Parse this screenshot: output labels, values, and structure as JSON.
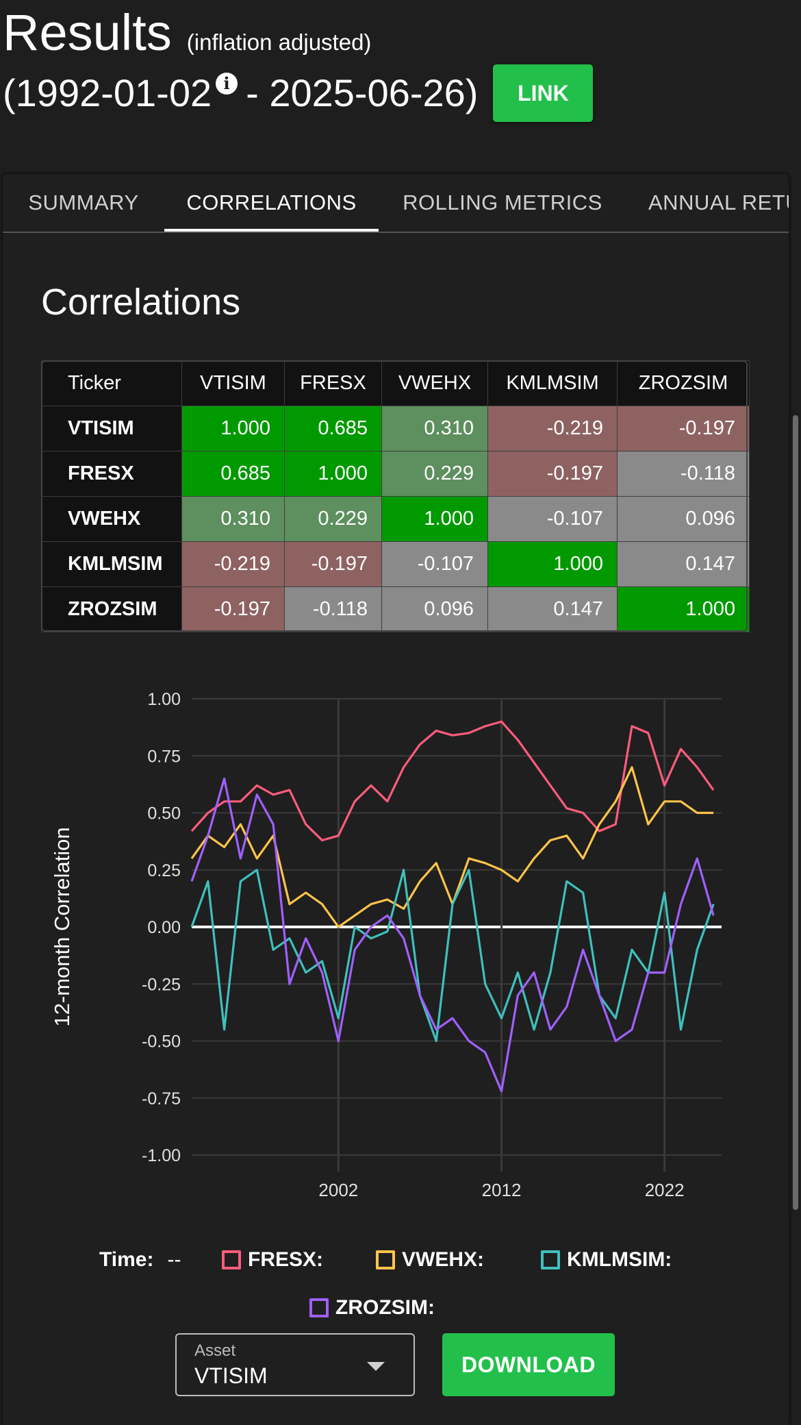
{
  "header": {
    "title": "Results",
    "subtitle": "(inflation adjusted)",
    "date_open": "(1992-01-02",
    "date_close": "- 2025-06-26)",
    "info_glyph": "i",
    "link_label": "LINK"
  },
  "tabs": [
    {
      "label": "SUMMARY",
      "active": false
    },
    {
      "label": "CORRELATIONS",
      "active": true
    },
    {
      "label": "ROLLING METRICS",
      "active": false
    },
    {
      "label": "ANNUAL RETU",
      "active": false
    }
  ],
  "section_title": "Correlations",
  "matrix": {
    "header": [
      "Ticker",
      "VTISIM",
      "FRESX",
      "VWEHX",
      "KMLMSIM",
      "ZROZSIM"
    ],
    "rows": [
      {
        "ticker": "VTISIM",
        "values": [
          "1.000",
          "0.685",
          "0.310",
          "-0.219",
          "-0.197"
        ]
      },
      {
        "ticker": "FRESX",
        "values": [
          "0.685",
          "1.000",
          "0.229",
          "-0.197",
          "-0.118"
        ]
      },
      {
        "ticker": "VWEHX",
        "values": [
          "0.310",
          "0.229",
          "1.000",
          "-0.107",
          "0.096"
        ]
      },
      {
        "ticker": "KMLMSIM",
        "values": [
          "-0.219",
          "-0.197",
          "-0.107",
          "1.000",
          "0.147"
        ]
      },
      {
        "ticker": "ZROZSIM",
        "values": [
          "-0.197",
          "-0.118",
          "0.096",
          "0.147",
          "1.000"
        ]
      }
    ],
    "colors": {
      "strong_positive": "#009a00",
      "positive": "#5e8f5e",
      "neutral": "#8a8a8a",
      "negative": "#8f6262"
    }
  },
  "chart_data": {
    "type": "line",
    "title": "",
    "xlabel": "",
    "ylabel": "12-month Correlation",
    "xlim": [
      1993,
      2025.5
    ],
    "ylim": [
      -1,
      1
    ],
    "x_ticks": [
      2002,
      2012,
      2022
    ],
    "y_ticks": [
      "1.00",
      "0.75",
      "0.50",
      "0.25",
      "0.00",
      "-0.25",
      "-0.50",
      "-0.75",
      "-1.00"
    ],
    "grid": true,
    "legend_position": "bottom",
    "series": [
      {
        "name": "FRESX",
        "color": "#ff5c7c",
        "x": [
          1993,
          1994,
          1995,
          1996,
          1997,
          1998,
          1999,
          2000,
          2001,
          2002,
          2003,
          2004,
          2005,
          2006,
          2007,
          2008,
          2009,
          2010,
          2011,
          2012,
          2013,
          2014,
          2015,
          2016,
          2017,
          2018,
          2019,
          2020,
          2021,
          2022,
          2023,
          2024,
          2025
        ],
        "y": [
          0.42,
          0.5,
          0.55,
          0.55,
          0.62,
          0.58,
          0.6,
          0.45,
          0.38,
          0.4,
          0.55,
          0.62,
          0.55,
          0.7,
          0.8,
          0.86,
          0.84,
          0.85,
          0.88,
          0.9,
          0.82,
          0.72,
          0.62,
          0.52,
          0.5,
          0.42,
          0.45,
          0.88,
          0.85,
          0.62,
          0.78,
          0.7,
          0.6
        ]
      },
      {
        "name": "VWEHX",
        "color": "#ffc44a",
        "x": [
          1993,
          1994,
          1995,
          1996,
          1997,
          1998,
          1999,
          2000,
          2001,
          2002,
          2003,
          2004,
          2005,
          2006,
          2007,
          2008,
          2009,
          2010,
          2011,
          2012,
          2013,
          2014,
          2015,
          2016,
          2017,
          2018,
          2019,
          2020,
          2021,
          2022,
          2023,
          2024,
          2025
        ],
        "y": [
          0.3,
          0.4,
          0.35,
          0.45,
          0.3,
          0.4,
          0.1,
          0.15,
          0.1,
          0.0,
          0.05,
          0.1,
          0.12,
          0.08,
          0.2,
          0.28,
          0.1,
          0.3,
          0.28,
          0.25,
          0.2,
          0.3,
          0.38,
          0.4,
          0.3,
          0.45,
          0.55,
          0.7,
          0.45,
          0.55,
          0.55,
          0.5,
          0.5
        ]
      },
      {
        "name": "KMLMSIM",
        "color": "#3fc0bc",
        "x": [
          1993,
          1994,
          1995,
          1996,
          1997,
          1998,
          1999,
          2000,
          2001,
          2002,
          2003,
          2004,
          2005,
          2006,
          2007,
          2008,
          2009,
          2010,
          2011,
          2012,
          2013,
          2014,
          2015,
          2016,
          2017,
          2018,
          2019,
          2020,
          2021,
          2022,
          2023,
          2024,
          2025
        ],
        "y": [
          0.0,
          0.2,
          -0.45,
          0.2,
          0.25,
          -0.1,
          -0.05,
          -0.2,
          -0.15,
          -0.4,
          0.0,
          -0.05,
          -0.02,
          0.25,
          -0.3,
          -0.5,
          0.1,
          0.25,
          -0.25,
          -0.4,
          -0.2,
          -0.45,
          -0.2,
          0.2,
          0.15,
          -0.3,
          -0.4,
          -0.1,
          -0.2,
          0.15,
          -0.45,
          -0.1,
          0.1
        ]
      },
      {
        "name": "ZROZSIM",
        "color": "#a060ff",
        "x": [
          1993,
          1994,
          1995,
          1996,
          1997,
          1998,
          1999,
          2000,
          2001,
          2002,
          2003,
          2004,
          2005,
          2006,
          2007,
          2008,
          2009,
          2010,
          2011,
          2012,
          2013,
          2014,
          2015,
          2016,
          2017,
          2018,
          2019,
          2020,
          2021,
          2022,
          2023,
          2024,
          2025
        ],
        "y": [
          0.2,
          0.4,
          0.65,
          0.3,
          0.58,
          0.45,
          -0.25,
          -0.05,
          -0.2,
          -0.5,
          -0.1,
          0.0,
          0.05,
          -0.05,
          -0.3,
          -0.45,
          -0.4,
          -0.5,
          -0.55,
          -0.72,
          -0.3,
          -0.2,
          -0.45,
          -0.35,
          -0.1,
          -0.3,
          -0.5,
          -0.45,
          -0.2,
          -0.2,
          0.1,
          0.3,
          0.05
        ]
      }
    ]
  },
  "legend": {
    "time_label": "Time:",
    "time_value": "--",
    "items": [
      "FRESX:",
      "VWEHX:",
      "KMLMSIM:",
      "ZROZSIM:"
    ]
  },
  "asset_select": {
    "label": "Asset",
    "value": "VTISIM"
  },
  "download_label": "DOWNLOAD"
}
